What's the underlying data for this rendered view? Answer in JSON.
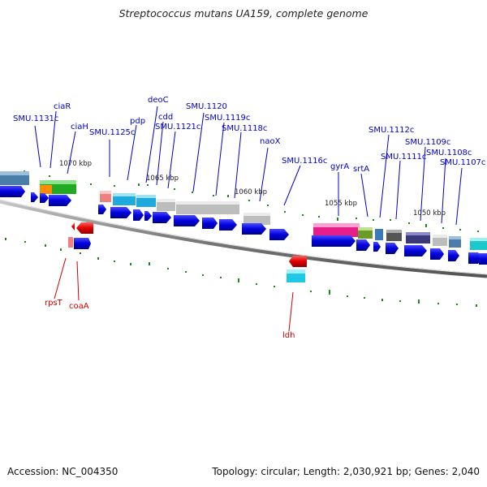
{
  "title": "Streptococcus mutans UA159, complete genome",
  "footer": {
    "accession": "Accession: NC_004350",
    "summary": "Topology: circular; Length: 2,030,921 bp; Genes: 2,040"
  },
  "ticks": [
    "1070 kbp",
    "1065 kbp",
    "1060 kbp",
    "1055 kbp",
    "1050 kbp"
  ],
  "labels_top": [
    "ciaR",
    "SMU.1131c",
    "ciaH",
    "deoC",
    "pdp",
    "SMU.1125c",
    "cdd",
    "SMU.1121c",
    "SMU.1120",
    "SMU.1119c",
    "SMU.1118c",
    "naoX",
    "SMU.1116c",
    "gyrA",
    "srtA",
    "SMU.1112c",
    "SMU.1111c",
    "SMU.1109c",
    "SMU.1108c",
    "SMU.1107c"
  ],
  "labels_bottom": [
    "rpsT",
    "coaA",
    "ldh"
  ],
  "colors": {
    "label_top": "#0000cc",
    "label_bottom": "#cc0000",
    "cds": "#0000dd",
    "backbone": "#808080",
    "tick_marks": "#1a8a1a"
  }
}
